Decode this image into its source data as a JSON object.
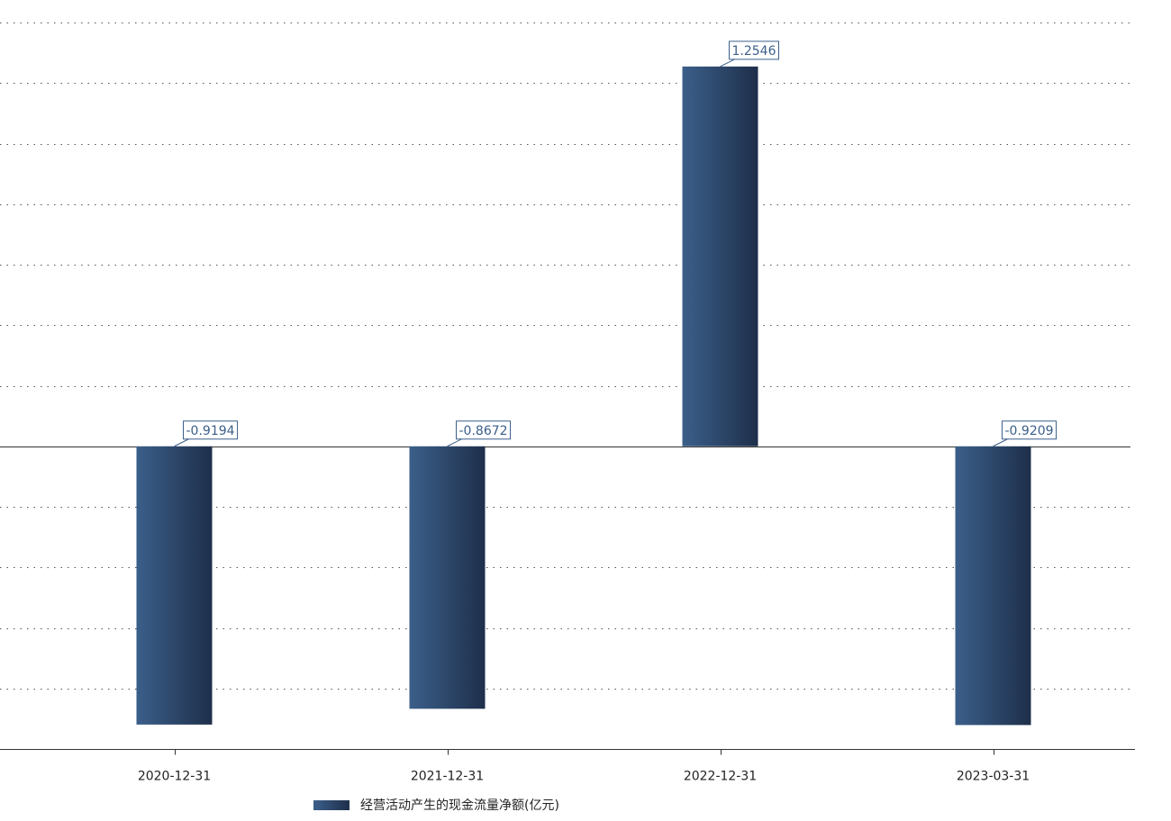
{
  "colors": {
    "bar_light": "#3b5f8a",
    "bar_dark": "#1e2f4a",
    "label": "#3b5f8a"
  },
  "chart_data": {
    "type": "bar",
    "categories": [
      "2020-12-31",
      "2021-12-31",
      "2022-12-31",
      "2023-03-31"
    ],
    "series": [
      {
        "name": "经营活动产生的现金流量净额(亿元)",
        "values": [
          -0.9194,
          -0.8672,
          1.2546,
          -0.9209
        ],
        "labels": [
          "-0.9194",
          "-0.8672",
          "1.2546",
          "-0.9209"
        ]
      }
    ],
    "ylim": [
      -1.0,
      1.4
    ],
    "grid": true,
    "grid_style": "dotted",
    "legend_position": "bottom-left",
    "title": "",
    "xlabel": "",
    "ylabel": ""
  }
}
